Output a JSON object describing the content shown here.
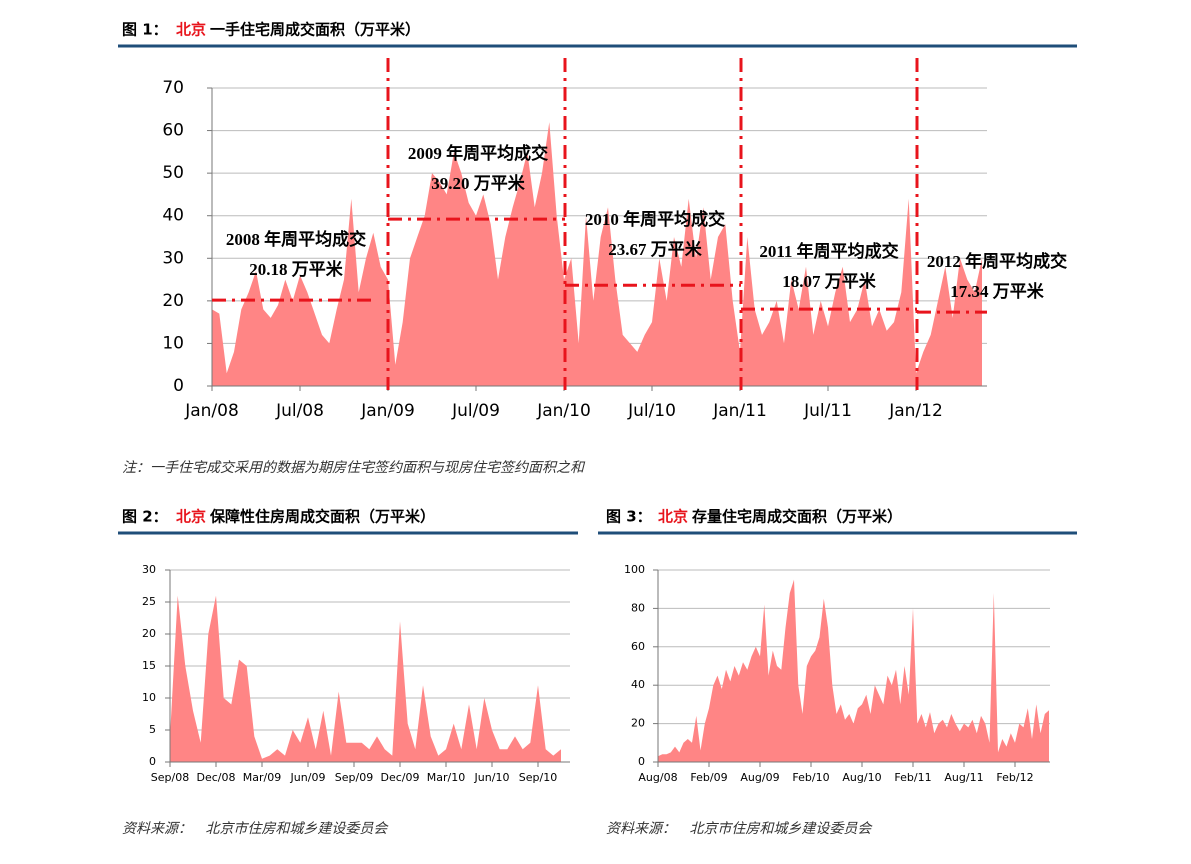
{
  "figures": [
    {
      "label": "图 1：",
      "city": "北京",
      "title": "一手住宅周成交面积（万平米）"
    },
    {
      "label": "图 2：",
      "city": "北京",
      "title": "保障性住房周成交面积（万平米）"
    },
    {
      "label": "图 3：",
      "city": "北京",
      "title": "存量住宅周成交面积（万平米）"
    }
  ],
  "note": "注：一手住宅成交采用的数据为期房住宅签约面积与现房住宅签约面积之和",
  "sources": [
    "资料来源：   北京市住房和城乡建设委员会",
    "资料来源：   北京市住房和城乡建设委员会"
  ],
  "chart_data": [
    {
      "type": "area",
      "color": "#ff8585",
      "grid": true,
      "ylim": [
        0,
        70
      ],
      "yticks": [
        0,
        10,
        20,
        30,
        40,
        50,
        60,
        70
      ],
      "categories": [
        "Jan/08",
        null,
        null,
        null,
        null,
        null,
        null,
        null,
        null,
        null,
        null,
        null,
        "Jul/08",
        null,
        null,
        null,
        null,
        null,
        null,
        null,
        null,
        null,
        null,
        null,
        "Jan/09",
        null,
        null,
        null,
        null,
        null,
        null,
        null,
        null,
        null,
        null,
        null,
        "Jul/09",
        null,
        null,
        null,
        null,
        null,
        null,
        null,
        null,
        null,
        null,
        null,
        "Jan/10",
        null,
        null,
        null,
        null,
        null,
        null,
        null,
        null,
        null,
        null,
        null,
        "Jul/10",
        null,
        null,
        null,
        null,
        null,
        null,
        null,
        null,
        null,
        null,
        null,
        "Jan/11",
        null,
        null,
        null,
        null,
        null,
        null,
        null,
        null,
        null,
        null,
        null,
        "Jul/11",
        null,
        null,
        null,
        null,
        null,
        null,
        null,
        null,
        null,
        null,
        null,
        "Jan/12",
        null,
        null,
        null,
        null,
        null,
        null,
        null,
        null,
        null
      ],
      "values": [
        18,
        17,
        3,
        8,
        18,
        22,
        27,
        18,
        16,
        19,
        25,
        20,
        26,
        22,
        17,
        12,
        10,
        18,
        25,
        44,
        22,
        30,
        36,
        28,
        25,
        5,
        15,
        30,
        35,
        40,
        50,
        48,
        45,
        55,
        50,
        43,
        40,
        45,
        38,
        25,
        35,
        42,
        48,
        55,
        42,
        50,
        62,
        40,
        25,
        30,
        10,
        40,
        20,
        35,
        42,
        25,
        12,
        10,
        8,
        12,
        15,
        30,
        20,
        35,
        28,
        44,
        30,
        42,
        25,
        35,
        38,
        20,
        8,
        35,
        18,
        12,
        15,
        20,
        10,
        25,
        18,
        28,
        12,
        20,
        14,
        22,
        28,
        15,
        18,
        25,
        14,
        18,
        13,
        15,
        22,
        44,
        3,
        8,
        12,
        20,
        28,
        16,
        30,
        25,
        22,
        30
      ],
      "annotations": [
        {
          "text": "2008 年周平均成交",
          "value": 20.18,
          "value_label": "20.18 万平米"
        },
        {
          "text": "2009 年周平均成交",
          "value": 39.2,
          "value_label": "39.20 万平米"
        },
        {
          "text": "2010 年周平均成交",
          "value": 23.67,
          "value_label": "23.67 万平米"
        },
        {
          "text": "2011 年周平均成交",
          "value": 18.07,
          "value_label": "18.07 万平米"
        },
        {
          "text": "2012 年周平均成交",
          "value": 17.34,
          "value_label": "17.34 万平米"
        }
      ]
    },
    {
      "type": "area",
      "color": "#ff8585",
      "grid": true,
      "ylim": [
        0,
        30
      ],
      "yticks": [
        0,
        5,
        10,
        15,
        20,
        25,
        30
      ],
      "categories": [
        "Sep/08",
        null,
        null,
        null,
        null,
        null,
        "Dec/08",
        null,
        null,
        null,
        null,
        null,
        "Mar/09",
        null,
        null,
        null,
        null,
        null,
        "Jun/09",
        null,
        null,
        null,
        null,
        null,
        "Sep/09",
        null,
        null,
        null,
        null,
        null,
        "Dec/09",
        null,
        null,
        null,
        null,
        null,
        "Mar/10",
        null,
        null,
        null,
        null,
        null,
        "Jun/10",
        null,
        null,
        null,
        null,
        null,
        "Sep/10",
        null,
        null,
        null
      ],
      "values": [
        4,
        26,
        15,
        8,
        3,
        20,
        26,
        10,
        9,
        16,
        15,
        4,
        0.5,
        1,
        2,
        1,
        5,
        3,
        7,
        2,
        8,
        1,
        11,
        3,
        3,
        3,
        2,
        4,
        2,
        1,
        22,
        6,
        2,
        12,
        4,
        1,
        2,
        6,
        2,
        9,
        2,
        10,
        5,
        2,
        2,
        4,
        2,
        3,
        12,
        2,
        1,
        2
      ]
    },
    {
      "type": "area",
      "color": "#ff8585",
      "grid": true,
      "ylim": [
        0,
        100
      ],
      "yticks": [
        0,
        20,
        40,
        60,
        80,
        100
      ],
      "categories": [
        "Aug/08",
        null,
        null,
        null,
        null,
        null,
        null,
        null,
        null,
        null,
        null,
        null,
        "Feb/09",
        null,
        null,
        null,
        null,
        null,
        null,
        null,
        null,
        null,
        null,
        null,
        "Aug/09",
        null,
        null,
        null,
        null,
        null,
        null,
        null,
        null,
        null,
        null,
        null,
        "Feb/10",
        null,
        null,
        null,
        null,
        null,
        null,
        null,
        null,
        null,
        null,
        null,
        "Aug/10",
        null,
        null,
        null,
        null,
        null,
        null,
        null,
        null,
        null,
        null,
        null,
        "Feb/11",
        null,
        null,
        null,
        null,
        null,
        null,
        null,
        null,
        null,
        null,
        null,
        "Aug/11",
        null,
        null,
        null,
        null,
        null,
        null,
        null,
        null,
        null,
        null,
        null,
        "Feb/12",
        null,
        null,
        null,
        null,
        null,
        null,
        null,
        null
      ],
      "values": [
        3,
        4,
        4,
        5,
        8,
        5,
        10,
        12,
        10,
        24,
        6,
        20,
        28,
        40,
        45,
        38,
        48,
        42,
        50,
        45,
        52,
        48,
        55,
        60,
        55,
        82,
        45,
        58,
        50,
        48,
        70,
        88,
        95,
        40,
        25,
        50,
        55,
        58,
        65,
        85,
        70,
        40,
        25,
        30,
        22,
        25,
        20,
        28,
        30,
        35,
        25,
        40,
        35,
        30,
        45,
        40,
        48,
        30,
        50,
        35,
        80,
        20,
        25,
        18,
        26,
        15,
        20,
        22,
        18,
        25,
        20,
        16,
        20,
        18,
        22,
        15,
        24,
        20,
        10,
        88,
        5,
        12,
        8,
        15,
        10,
        20,
        18,
        28,
        12,
        30,
        15,
        25,
        27
      ]
    }
  ]
}
